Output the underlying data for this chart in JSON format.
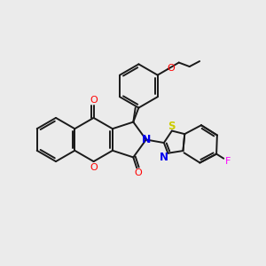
{
  "bg_color": "#ebebeb",
  "bond_color": "#1a1a1a",
  "atom_colors": {
    "O": "#ff0000",
    "N": "#0000ee",
    "S": "#cccc00",
    "F": "#ff00ff",
    "C": "#1a1a1a"
  },
  "lw": 1.4,
  "figsize": [
    3.0,
    3.0
  ],
  "dpi": 100,
  "xlim": [
    0,
    10
  ],
  "ylim": [
    0,
    10
  ]
}
